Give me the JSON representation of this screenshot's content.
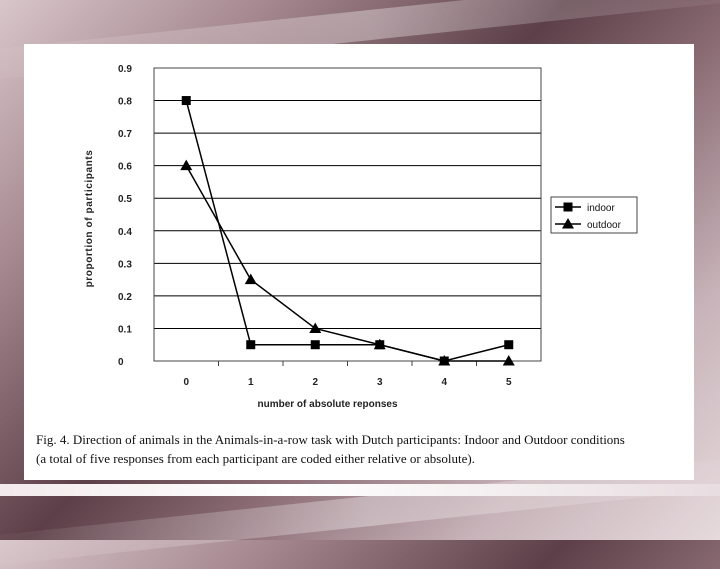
{
  "chart_data": {
    "type": "line",
    "title": "",
    "xlabel": "number of absolute reponses",
    "ylabel": "proportion of participants",
    "x": [
      0,
      1,
      2,
      3,
      4,
      5
    ],
    "xlim": [
      0,
      5
    ],
    "ylim": [
      0,
      0.9
    ],
    "y_ticks": [
      "0",
      "0.1",
      "0.2",
      "0.3",
      "0.4",
      "0.5",
      "0.6",
      "0.7",
      "0.8",
      "0.9"
    ],
    "x_ticks": [
      "0",
      "1",
      "2",
      "3",
      "4",
      "5"
    ],
    "grid": true,
    "legend_position": "right",
    "series": [
      {
        "name": "indoor",
        "marker": "square",
        "values": [
          0.8,
          0.05,
          0.05,
          0.05,
          0.0,
          0.05
        ]
      },
      {
        "name": "outdoor",
        "marker": "triangle",
        "values": [
          0.6,
          0.25,
          0.1,
          0.05,
          0.0,
          0.0
        ]
      }
    ]
  },
  "caption": {
    "line1": "Fig. 4. Direction of animals in the Animals-in-a-row task with Dutch participants: Indoor and Outdoor conditions",
    "line2": "(a total of five responses from each participant are coded either relative or absolute)."
  }
}
